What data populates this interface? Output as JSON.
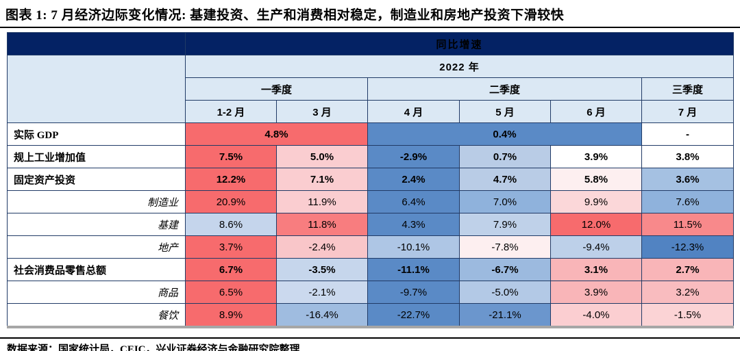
{
  "figure": {
    "title": "图表 1: 7 月经济边际变化情况: 基建投资、生产和消费相对稳定，制造业和房地产投资下滑较快",
    "source_note": "数据来源：国家统计局，CEIC，兴业证券经济与金融研究院整理"
  },
  "colors": {
    "header_navy": "#042264",
    "header_light_blue": "#dbe8f4",
    "strong_red": "#f76b6d",
    "strong_blue": "#5a8ac6",
    "table_shadow_gray": "#a6a6a6",
    "border_navy": "#203a66"
  },
  "chart_data": {
    "type": "table",
    "title": "同比增速",
    "year_header": "2022 年",
    "quarter_headers": [
      {
        "label": "一季度",
        "colspan": 2
      },
      {
        "label": "二季度",
        "colspan": 3
      },
      {
        "label": "三季度",
        "colspan": 1
      }
    ],
    "month_headers": [
      "1-2 月",
      "3 月",
      "4 月",
      "5 月",
      "6 月",
      "7 月"
    ],
    "rows": [
      {
        "label": "实际 GDP",
        "sub": false,
        "cells": [
          {
            "text": "4.8%",
            "colspan": 2,
            "bg": "#f76b6d"
          },
          {
            "text": "0.4%",
            "colspan": 3,
            "bg": "#5a8ac6"
          },
          {
            "text": "-",
            "colspan": 1,
            "bg": "#ffffff"
          }
        ]
      },
      {
        "label": "规上工业增加值",
        "sub": false,
        "cells": [
          {
            "text": "7.5%",
            "bg": "#f76b6d"
          },
          {
            "text": "5.0%",
            "bg": "#facdd0"
          },
          {
            "text": "-2.9%",
            "bg": "#5a8ac6"
          },
          {
            "text": "0.7%",
            "bg": "#b9cce6"
          },
          {
            "text": "3.9%",
            "bg": "#ffffff"
          },
          {
            "text": "3.8%",
            "bg": "#ffffff"
          }
        ]
      },
      {
        "label": "固定资产投资",
        "sub": false,
        "cells": [
          {
            "text": "12.2%",
            "bg": "#f76b6d"
          },
          {
            "text": "7.1%",
            "bg": "#facdd0"
          },
          {
            "text": "2.4%",
            "bg": "#5a8ac6"
          },
          {
            "text": "4.7%",
            "bg": "#b9cce6"
          },
          {
            "text": "5.8%",
            "bg": "#fdeff0"
          },
          {
            "text": "3.6%",
            "bg": "#a5c1e2"
          }
        ]
      },
      {
        "label": "制造业",
        "sub": true,
        "cells": [
          {
            "text": "20.9%",
            "bg": "#f76b6d"
          },
          {
            "text": "11.9%",
            "bg": "#facdd0"
          },
          {
            "text": "6.4%",
            "bg": "#5a8ac6"
          },
          {
            "text": "7.0%",
            "bg": "#8fb2dc"
          },
          {
            "text": "9.9%",
            "bg": "#fbd7d9"
          },
          {
            "text": "7.6%",
            "bg": "#8fb2dc"
          }
        ]
      },
      {
        "label": "基建",
        "sub": true,
        "cells": [
          {
            "text": "8.6%",
            "bg": "#c5d5ec"
          },
          {
            "text": "11.8%",
            "bg": "#f87d7f"
          },
          {
            "text": "4.3%",
            "bg": "#5a8ac6"
          },
          {
            "text": "7.9%",
            "bg": "#bfd1e9"
          },
          {
            "text": "12.0%",
            "bg": "#f76b6d"
          },
          {
            "text": "11.5%",
            "bg": "#f8898b"
          }
        ]
      },
      {
        "label": "地产",
        "sub": true,
        "cells": [
          {
            "text": "3.7%",
            "bg": "#f76b6d"
          },
          {
            "text": "-2.4%",
            "bg": "#f9c6c9"
          },
          {
            "text": "-10.1%",
            "bg": "#aec6e5"
          },
          {
            "text": "-7.8%",
            "bg": "#fdeff0"
          },
          {
            "text": "-9.4%",
            "bg": "#bdd0e9"
          },
          {
            "text": "-12.3%",
            "bg": "#5183c2"
          }
        ]
      },
      {
        "label": "社会消费品零售总额",
        "sub": false,
        "cells": [
          {
            "text": "6.7%",
            "bg": "#f76b6d"
          },
          {
            "text": "-3.5%",
            "bg": "#c6d6ec"
          },
          {
            "text": "-11.1%",
            "bg": "#5a8ac6"
          },
          {
            "text": "-6.7%",
            "bg": "#9cbadf"
          },
          {
            "text": "3.1%",
            "bg": "#f9b5b8"
          },
          {
            "text": "2.7%",
            "bg": "#f9b5b8"
          }
        ]
      },
      {
        "label": "商品",
        "sub": true,
        "cells": [
          {
            "text": "6.5%",
            "bg": "#f76b6d"
          },
          {
            "text": "-2.1%",
            "bg": "#cbd9ee"
          },
          {
            "text": "-9.7%",
            "bg": "#5a8ac6"
          },
          {
            "text": "-5.0%",
            "bg": "#b3c9e6"
          },
          {
            "text": "3.9%",
            "bg": "#f9b5b8"
          },
          {
            "text": "3.2%",
            "bg": "#f9bcbf"
          }
        ]
      },
      {
        "label": "餐饮",
        "sub": true,
        "cells": [
          {
            "text": "8.9%",
            "bg": "#f76b6d"
          },
          {
            "text": "-16.4%",
            "bg": "#9fbce0"
          },
          {
            "text": "-22.7%",
            "bg": "#5a8ac6"
          },
          {
            "text": "-21.1%",
            "bg": "#6b96cd"
          },
          {
            "text": "-4.0%",
            "bg": "#fbced1"
          },
          {
            "text": "-1.5%",
            "bg": "#fbd3d5"
          }
        ]
      }
    ]
  }
}
